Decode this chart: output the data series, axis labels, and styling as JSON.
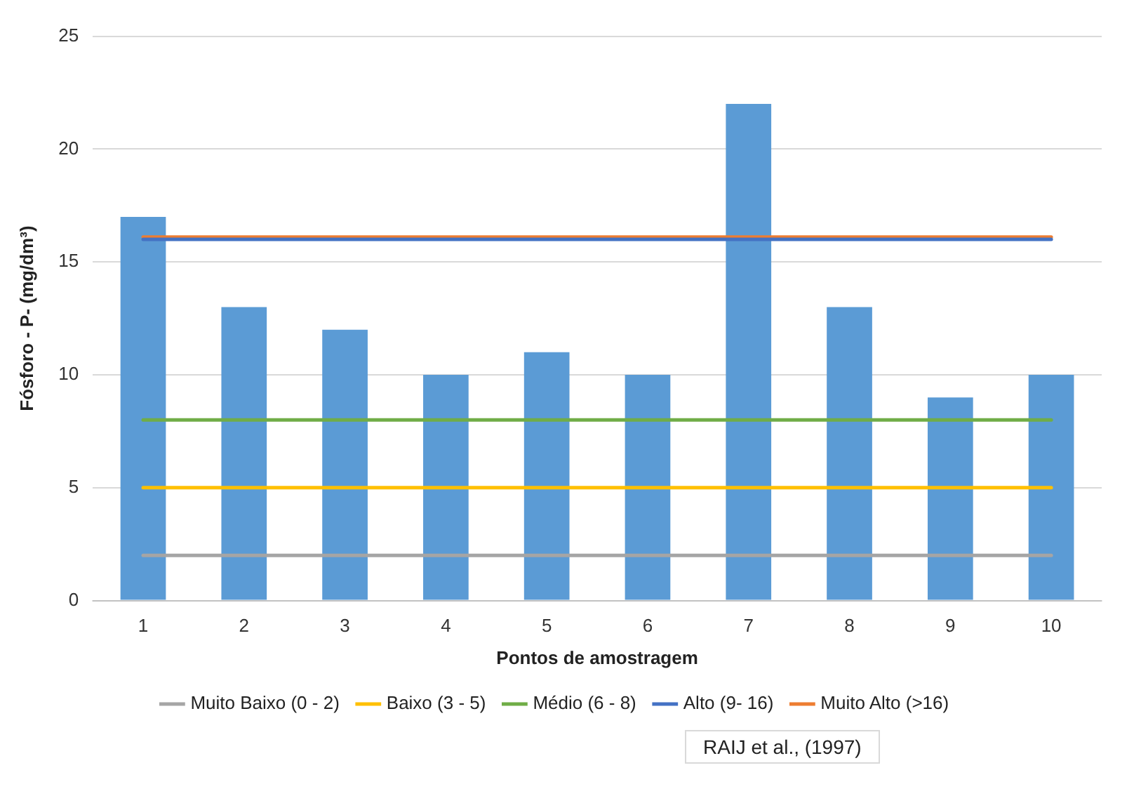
{
  "chart_data": {
    "type": "bar",
    "xlabel": "Pontos de amostragem",
    "ylabel": "Fósforo - P- (mg/dm³)",
    "categories": [
      "1",
      "2",
      "3",
      "4",
      "5",
      "6",
      "7",
      "8",
      "9",
      "10"
    ],
    "series": [
      {
        "color": "#5b9bd5",
        "values": [
          17,
          13,
          12,
          10,
          11,
          10,
          22,
          13,
          9,
          10
        ]
      },
      {
        "type": "line",
        "name": "Muito Baixo (0 - 2)",
        "color": "#a5a5a5",
        "values": [
          2,
          2,
          2,
          2,
          2,
          2,
          2,
          2,
          2,
          2
        ]
      },
      {
        "type": "line",
        "name": "Baixo (3 - 5)",
        "color": "#ffc000",
        "values": [
          5,
          5,
          5,
          5,
          5,
          5,
          5,
          5,
          5,
          5
        ]
      },
      {
        "type": "line",
        "name": "Médio (6 - 8)",
        "color": "#70ad47",
        "values": [
          8,
          8,
          8,
          8,
          8,
          8,
          8,
          8,
          8,
          8
        ]
      },
      {
        "type": "line",
        "name": "Alto (9- 16)",
        "color": "#4472c4",
        "values": [
          16,
          16,
          16,
          16,
          16,
          16,
          16,
          16,
          16,
          16
        ]
      },
      {
        "type": "line",
        "name": "Muito Alto (>16)",
        "color": "#ed7d31",
        "values": [
          16.1,
          16.1,
          16.1,
          16.1,
          16.1,
          16.1,
          16.1,
          16.1,
          16.1,
          16.1
        ]
      }
    ],
    "ylim": [
      0,
      25
    ],
    "yticks": [
      0,
      5,
      10,
      15,
      20,
      25
    ],
    "grid": "y",
    "legend": "bottom",
    "marker": "none",
    "line_style": "solid",
    "annotations": [
      "RAIJ et al., (1997)"
    ]
  }
}
